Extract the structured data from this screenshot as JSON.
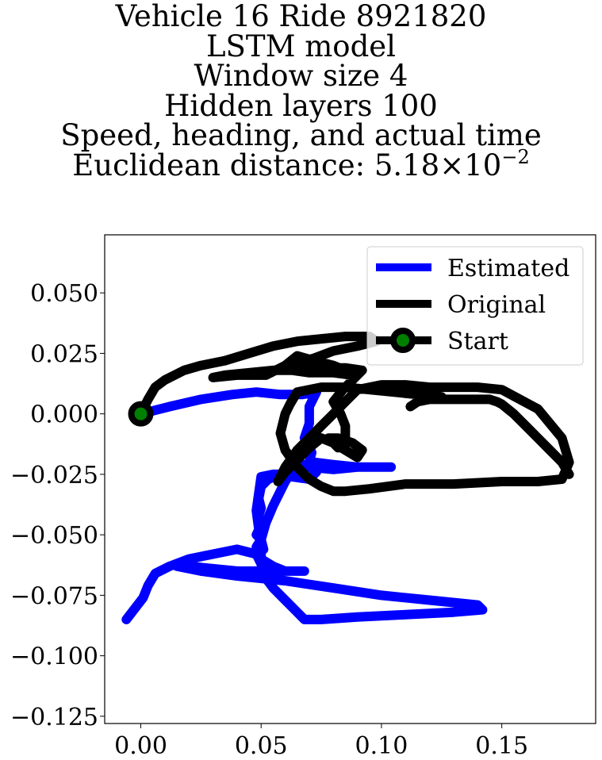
{
  "title": {
    "line1": "Vehicle 16 Ride 8921820",
    "line2": "LSTM model",
    "line3": "Window size 4",
    "line4": "Hidden layers 100",
    "line5": "Speed, heading, and actual time",
    "line6_prefix": "Euclidean distance: 5.18",
    "line6_times": "×",
    "line6_base": "10",
    "line6_exp": "−2"
  },
  "chart_data": {
    "type": "line",
    "xlim": [
      -0.015,
      0.189
    ],
    "ylim": [
      -0.128,
      0.074
    ],
    "xticks": [
      0.0,
      0.05,
      0.1,
      0.15
    ],
    "xtick_labels": [
      "0.00",
      "0.05",
      "0.10",
      "0.15"
    ],
    "yticks": [
      0.05,
      0.025,
      0.0,
      -0.025,
      -0.05,
      -0.075,
      -0.1,
      -0.125
    ],
    "ytick_labels": [
      "0.050",
      "0.025",
      "0.000",
      "−0.025",
      "−0.050",
      "−0.075",
      "−0.100",
      "−0.125"
    ],
    "grid": false,
    "legend_position": "top-right",
    "series": [
      {
        "name": "Estimated",
        "color": "#0000ff",
        "x": [
          0.0,
          0.012,
          0.025,
          0.038,
          0.048,
          0.058,
          0.067,
          0.073,
          0.07,
          0.07,
          0.068,
          0.071,
          0.07,
          0.073,
          0.07,
          0.063,
          0.06,
          0.058,
          0.053,
          0.05,
          0.049,
          0.05,
          0.049,
          0.05,
          0.048,
          0.05,
          0.048,
          0.049,
          0.051,
          0.05,
          0.052,
          0.055,
          0.058,
          0.06,
          0.062,
          0.065,
          0.068,
          0.072,
          0.08,
          0.09,
          0.1,
          0.104,
          0.1,
          0.09,
          0.08,
          0.07,
          0.065,
          0.06,
          0.055,
          0.05,
          0.048,
          0.05,
          0.05,
          0.055,
          0.06,
          0.068,
          0.06,
          0.05,
          0.04,
          0.03,
          0.02,
          0.015,
          0.015,
          0.025,
          0.04,
          0.06,
          0.08,
          0.1,
          0.12,
          0.14,
          0.142,
          0.13,
          0.11,
          0.09,
          0.075,
          0.068,
          0.065,
          0.06,
          0.055,
          0.052,
          0.05,
          0.048,
          0.04,
          0.03,
          0.02,
          0.012,
          0.006,
          0.003,
          0.001,
          -0.006
        ],
        "y": [
          0.0,
          0.003,
          0.006,
          0.008,
          0.009,
          0.008,
          0.008,
          0.009,
          0.003,
          -0.004,
          -0.01,
          -0.016,
          -0.02,
          -0.024,
          -0.027,
          -0.026,
          -0.024,
          -0.025,
          -0.027,
          -0.03,
          -0.035,
          -0.039,
          -0.042,
          -0.046,
          -0.05,
          -0.052,
          -0.055,
          -0.058,
          -0.056,
          -0.052,
          -0.045,
          -0.038,
          -0.032,
          -0.028,
          -0.025,
          -0.022,
          -0.021,
          -0.02,
          -0.021,
          -0.022,
          -0.022,
          -0.022,
          -0.022,
          -0.022,
          -0.023,
          -0.022,
          -0.023,
          -0.025,
          -0.025,
          -0.026,
          -0.04,
          -0.055,
          -0.06,
          -0.063,
          -0.065,
          -0.065,
          -0.065,
          -0.065,
          -0.065,
          -0.064,
          -0.063,
          -0.062,
          -0.063,
          -0.065,
          -0.067,
          -0.069,
          -0.072,
          -0.075,
          -0.077,
          -0.079,
          -0.081,
          -0.082,
          -0.083,
          -0.084,
          -0.085,
          -0.085,
          -0.082,
          -0.077,
          -0.072,
          -0.068,
          -0.062,
          -0.058,
          -0.056,
          -0.058,
          -0.06,
          -0.063,
          -0.066,
          -0.071,
          -0.076,
          -0.085
        ]
      },
      {
        "name": "Original",
        "color": "#000000",
        "x": [
          0.0,
          0.003,
          0.006,
          0.01,
          0.018,
          0.025,
          0.035,
          0.045,
          0.055,
          0.065,
          0.075,
          0.085,
          0.095,
          0.098,
          0.09,
          0.08,
          0.072,
          0.065,
          0.06,
          0.063,
          0.07,
          0.08,
          0.088,
          0.085,
          0.08,
          0.072,
          0.065,
          0.06,
          0.052,
          0.04,
          0.03,
          0.035,
          0.045,
          0.055,
          0.065,
          0.075,
          0.085,
          0.092,
          0.088,
          0.084,
          0.08,
          0.083,
          0.085,
          0.085,
          0.084,
          0.084,
          0.082,
          0.08,
          0.078,
          0.082,
          0.088,
          0.092,
          0.09,
          0.085,
          0.08,
          0.075,
          0.07,
          0.065,
          0.06,
          0.057,
          0.06,
          0.065,
          0.07,
          0.075,
          0.08,
          0.085,
          0.09,
          0.1,
          0.11,
          0.12,
          0.13,
          0.14,
          0.15,
          0.165,
          0.175,
          0.178,
          0.175,
          0.165,
          0.15,
          0.13,
          0.11,
          0.095,
          0.085,
          0.08,
          0.075,
          0.07,
          0.065,
          0.06,
          0.058,
          0.06,
          0.062,
          0.065,
          0.075,
          0.085,
          0.095,
          0.105,
          0.115,
          0.125,
          0.12,
          0.115,
          0.112,
          0.115,
          0.12,
          0.125,
          0.13,
          0.135,
          0.14,
          0.145,
          0.148,
          0.15,
          0.155,
          0.16,
          0.165,
          0.17,
          0.175,
          0.178
        ],
        "y": [
          0.0,
          0.006,
          0.011,
          0.014,
          0.018,
          0.02,
          0.022,
          0.025,
          0.028,
          0.03,
          0.031,
          0.032,
          0.032,
          0.03,
          0.028,
          0.026,
          0.023,
          0.021,
          0.02,
          0.018,
          0.017,
          0.017,
          0.016,
          0.018,
          0.02,
          0.022,
          0.024,
          0.02,
          0.016,
          0.016,
          0.015,
          0.016,
          0.017,
          0.018,
          0.018,
          0.019,
          0.019,
          0.018,
          0.014,
          0.01,
          0.005,
          0.0,
          -0.005,
          -0.01,
          -0.013,
          -0.012,
          -0.014,
          -0.012,
          -0.01,
          -0.01,
          -0.012,
          -0.015,
          -0.018,
          -0.015,
          -0.012,
          -0.01,
          -0.014,
          -0.019,
          -0.024,
          -0.028,
          -0.022,
          -0.015,
          -0.01,
          -0.005,
          0.0,
          0.005,
          0.01,
          0.012,
          0.012,
          0.011,
          0.011,
          0.011,
          0.01,
          0.002,
          -0.01,
          -0.02,
          -0.027,
          -0.028,
          -0.028,
          -0.029,
          -0.029,
          -0.031,
          -0.032,
          -0.032,
          -0.03,
          -0.027,
          -0.022,
          -0.015,
          -0.008,
          0.0,
          0.004,
          0.009,
          0.011,
          0.011,
          0.01,
          0.009,
          0.008,
          0.007,
          0.006,
          0.005,
          0.003,
          0.005,
          0.006,
          0.006,
          0.006,
          0.006,
          0.006,
          0.006,
          0.005,
          0.004,
          0.0,
          -0.005,
          -0.01,
          -0.015,
          -0.02,
          -0.025
        ]
      },
      {
        "name": "Start",
        "color": "#000000",
        "marker_face": "#008000",
        "x": [
          0.0
        ],
        "y": [
          0.0
        ]
      }
    ]
  }
}
